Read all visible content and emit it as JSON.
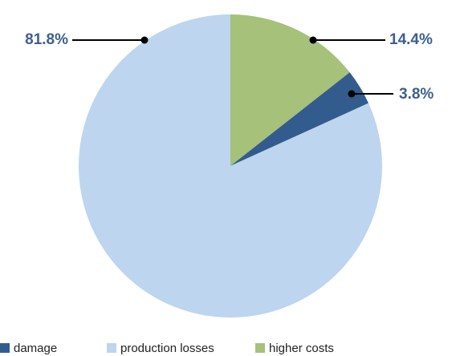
{
  "chart_data": {
    "type": "pie",
    "categories": [
      "damage",
      "production losses",
      "higher costs"
    ],
    "values": [
      3.8,
      81.8,
      14.4
    ],
    "value_labels": [
      "3.8%",
      "81.8%",
      "14.4%"
    ],
    "colors": [
      "#335c8e",
      "#bdd5ee",
      "#a6c17a"
    ],
    "legend": "bottom-left"
  }
}
